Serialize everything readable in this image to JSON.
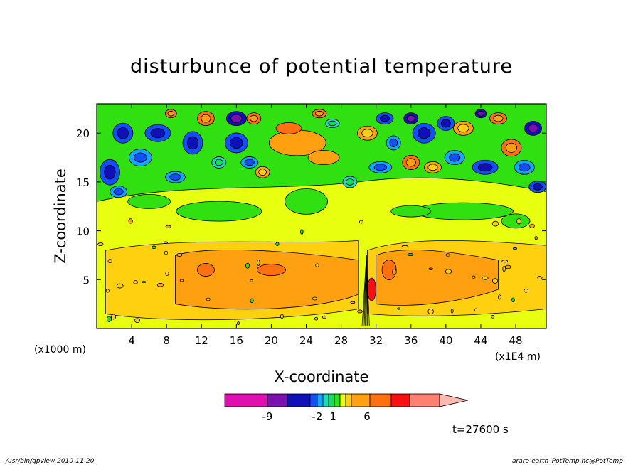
{
  "chart_data": {
    "type": "heatmap",
    "title": "disturbunce of potential temperature",
    "xlabel": "X-coordinate",
    "ylabel": "Z-coordinate",
    "x_unit_left": "(x1000 m)",
    "x_unit_right": "(x1E4 m)",
    "xlim": [
      0,
      51.5
    ],
    "ylim": [
      0,
      23
    ],
    "x_ticks": [
      "4",
      "8",
      "12",
      "16",
      "20",
      "24",
      "28",
      "32",
      "36",
      "40",
      "44",
      "48"
    ],
    "x_tick_values": [
      4,
      8,
      12,
      16,
      20,
      24,
      28,
      32,
      36,
      40,
      44,
      48
    ],
    "y_ticks": [
      "5",
      "10",
      "15",
      "20"
    ],
    "y_tick_values": [
      5,
      10,
      15,
      20
    ],
    "colorbar": {
      "colors": [
        "#e010b0",
        "#7a10b0",
        "#1010b8",
        "#1050ff",
        "#10a8ff",
        "#20d8c0",
        "#10e060",
        "#30e010",
        "#e8ff10",
        "#ffd010",
        "#ffa010",
        "#ff7010",
        "#f81010",
        "#ff8070",
        "#ffb8b0"
      ],
      "tick_labels": [
        "-9",
        "-2",
        "1",
        "6"
      ],
      "tick_colors_index": [
        2,
        6,
        8,
        11
      ]
    },
    "time_label": "t=27600 s"
  },
  "footer": {
    "left": "/usr/bin/gpview   2010-11-20",
    "right": "arare-earth_PotTemp.nc@PotTemp"
  }
}
